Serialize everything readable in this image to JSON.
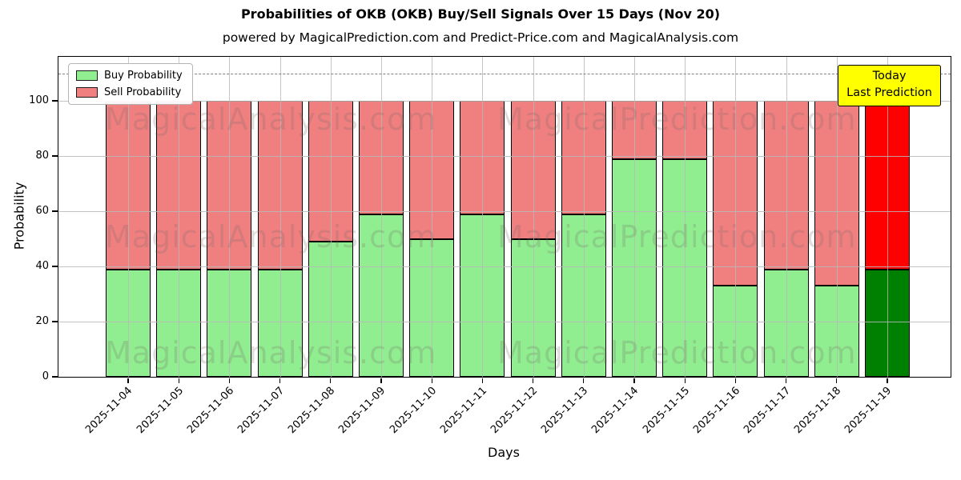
{
  "title": "Probabilities of OKB (OKB) Buy/Sell Signals Over 15 Days (Nov 20)",
  "subtitle": "powered by MagicalPrediction.com and Predict-Price.com and MagicalAnalysis.com",
  "ylabel": "Probability",
  "xlabel": "Days",
  "legend": {
    "buy": "Buy Probability",
    "sell": "Sell Probability"
  },
  "annotation_box": {
    "line1": "Today",
    "line2": "Last Prediction",
    "bg": "#ffff00"
  },
  "watermarks": [
    "MagicalAnalysis.com",
    "MagicalPrediction.com"
  ],
  "colors": {
    "buy": "#90ee90",
    "sell": "#f08080",
    "today_buy": "#008000",
    "today_sell": "#ff0000",
    "grid": "#b8b8b8",
    "dashed_line": "#7f7f7f",
    "bar_edge": "#000000"
  },
  "chart_data": {
    "type": "bar",
    "stacked": true,
    "title": "Probabilities of OKB (OKB) Buy/Sell Signals Over 15 Days (Nov 20)",
    "xlabel": "Days",
    "ylabel": "Probability",
    "categories": [
      "2025-11-04",
      "2025-11-05",
      "2025-11-06",
      "2025-11-07",
      "2025-11-08",
      "2025-11-09",
      "2025-11-10",
      "2025-11-11",
      "2025-11-12",
      "2025-11-13",
      "2025-11-14",
      "2025-11-15",
      "2025-11-16",
      "2025-11-17",
      "2025-11-18",
      "2025-11-19"
    ],
    "series": [
      {
        "name": "Buy Probability",
        "color": "#90ee90",
        "values": [
          39,
          39,
          39,
          39,
          49,
          59,
          50,
          59,
          50,
          59,
          79,
          79,
          33,
          39,
          33,
          39
        ]
      },
      {
        "name": "Sell Probability",
        "color": "#f08080",
        "values": [
          61,
          61,
          61,
          61,
          51,
          41,
          50,
          41,
          50,
          41,
          21,
          21,
          67,
          61,
          67,
          61
        ]
      }
    ],
    "today_bar": {
      "category": "2025-11-19",
      "buy_color": "#008000",
      "sell_color": "#ff0000"
    },
    "ylim": [
      0,
      116
    ],
    "yticks": [
      0,
      20,
      40,
      60,
      80,
      100
    ],
    "dashed_line_y": 110,
    "grid": true,
    "legend_position": "upper left"
  }
}
